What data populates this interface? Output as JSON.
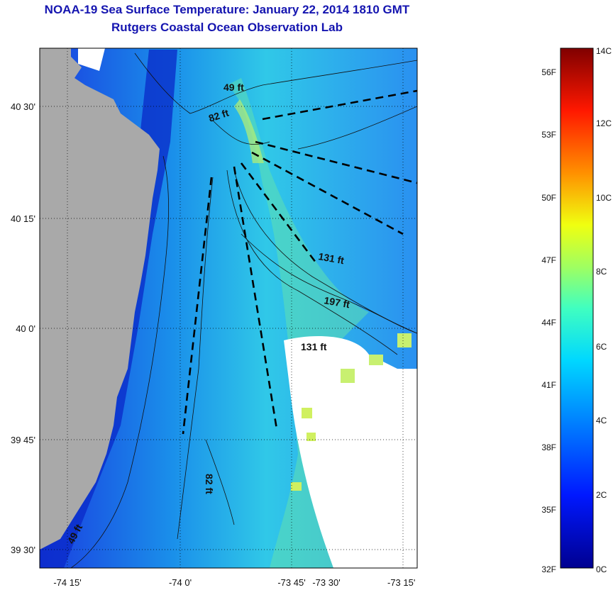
{
  "title": "NOAA-19 Sea Surface Temperature:  January 22, 2014 1810 GMT",
  "subtitle": "Rutgers Coastal Ocean Observation Lab",
  "map": {
    "lat_ticks": [
      "40 30'",
      "40 15'",
      "40 0'",
      "39 45'",
      "39 30'"
    ],
    "lon_ticks": [
      "-74 15'",
      "-74 0'",
      "-73 45'",
      "-73 30'",
      "-73 15'"
    ],
    "depth_labels": [
      "49 ft",
      "82 ft",
      "131 ft",
      "197 ft",
      "131 ft",
      "82 ft",
      "49 ft"
    ],
    "colors": {
      "land": "#a9a9a9",
      "cloud": "#ffffff"
    }
  },
  "colorbar": {
    "fahrenheit_labels": [
      "56F",
      "53F",
      "50F",
      "47F",
      "44F",
      "41F",
      "38F",
      "35F",
      "32F"
    ],
    "celsius_labels": [
      "14C",
      "12C",
      "10C",
      "8C",
      "6C",
      "4C",
      "2C",
      "0C"
    ],
    "colors": [
      "#0000a0",
      "#0030ff",
      "#00b0ff",
      "#30f0d0",
      "#a0f060",
      "#f0f020",
      "#ff9000",
      "#ff2000",
      "#800000"
    ]
  }
}
